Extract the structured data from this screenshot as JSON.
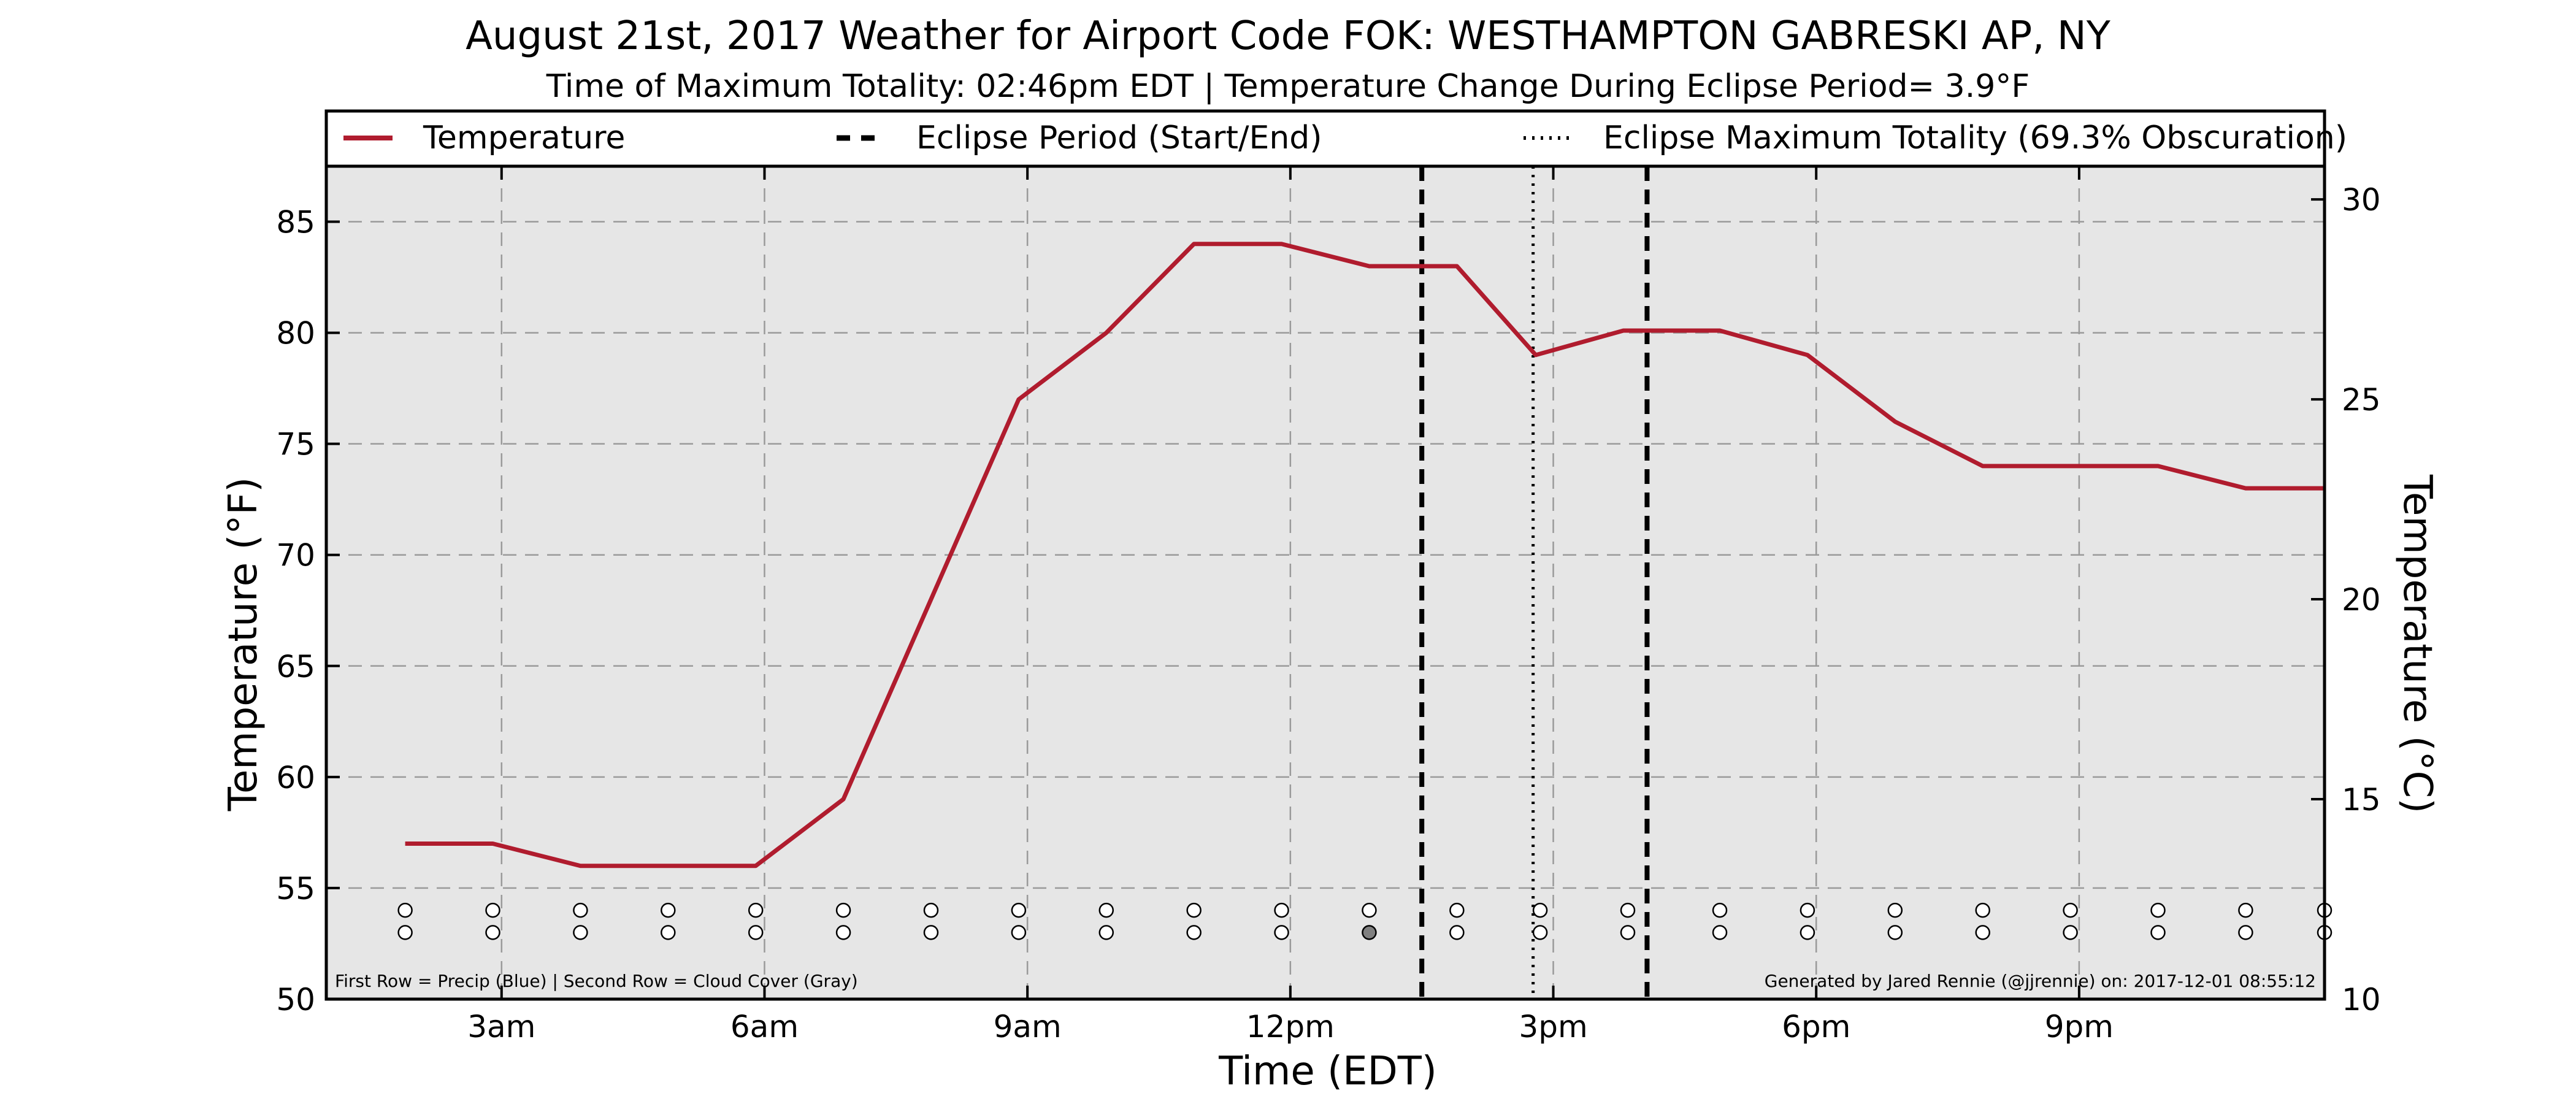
{
  "colors": {
    "temperature_line": "#b01c2e",
    "plot_background": "#e6e6e6",
    "cloud_filled": "#808080",
    "marker_empty": "#ffffff"
  },
  "chart_data": {
    "type": "line",
    "title": "August 21st, 2017 Weather for Airport Code FOK: WESTHAMPTON GABRESKI AP, NY",
    "subtitle": "Time of Maximum Totality: 02:46pm EDT | Temperature Change During Eclipse Period= 3.9°F",
    "xlabel": "Time (EDT)",
    "ylabel": "Temperature (°F)",
    "ylabel_right": "Temperature (°C)",
    "xlim": [
      1.0,
      23.8
    ],
    "ylim": [
      50,
      87.5
    ],
    "ylim_right": [
      10,
      30.83
    ],
    "grid": true,
    "legend_placement": "top",
    "x_ticks": [
      {
        "x": 3,
        "label": "3am"
      },
      {
        "x": 6,
        "label": "6am"
      },
      {
        "x": 9,
        "label": "9am"
      },
      {
        "x": 12,
        "label": "12pm"
      },
      {
        "x": 15,
        "label": "3pm"
      },
      {
        "x": 18,
        "label": "6pm"
      },
      {
        "x": 21,
        "label": "9pm"
      }
    ],
    "y_ticks": [
      50,
      55,
      60,
      65,
      70,
      75,
      80,
      85
    ],
    "y_ticks_right": [
      10,
      15,
      20,
      25,
      30
    ],
    "legend": [
      {
        "label": "Temperature",
        "style": "solid"
      },
      {
        "label": "Eclipse Period (Start/End)",
        "style": "dashed"
      },
      {
        "label": "Eclipse Maximum Totality (69.3% Obscuration)",
        "style": "dotted"
      }
    ],
    "series": [
      {
        "name": "Temperature",
        "x": [
          1.9,
          2.9,
          3.9,
          4.9,
          5.9,
          6.9,
          7.9,
          8.9,
          9.9,
          10.9,
          11.9,
          12.9,
          13.9,
          14.8,
          15.8,
          16.9,
          17.9,
          18.9,
          19.9,
          20.9,
          21.9,
          22.9,
          23.9
        ],
        "y": [
          57,
          57,
          56,
          56,
          56,
          59,
          68,
          77,
          80,
          84,
          84,
          83,
          83,
          79,
          80.1,
          80.1,
          79,
          76,
          74,
          74,
          74,
          73,
          73
        ]
      }
    ],
    "eclipse_start": 13.5,
    "eclipse_max": 14.77,
    "eclipse_end": 16.07,
    "marker_rows": [
      {
        "name": "Precip",
        "y": 54,
        "x": [
          1.9,
          2.9,
          3.9,
          4.9,
          5.9,
          6.9,
          7.9,
          8.9,
          9.9,
          10.9,
          11.9,
          12.9,
          13.9,
          14.85,
          15.85,
          16.9,
          17.9,
          18.9,
          19.9,
          20.9,
          21.9,
          22.9,
          23.8
        ],
        "filled": [
          false,
          false,
          false,
          false,
          false,
          false,
          false,
          false,
          false,
          false,
          false,
          false,
          false,
          false,
          false,
          false,
          false,
          false,
          false,
          false,
          false,
          false,
          false
        ]
      },
      {
        "name": "Cloud Cover",
        "y": 53,
        "x": [
          1.9,
          2.9,
          3.9,
          4.9,
          5.9,
          6.9,
          7.9,
          8.9,
          9.9,
          10.9,
          11.9,
          12.9,
          13.9,
          14.85,
          15.85,
          16.9,
          17.9,
          18.9,
          19.9,
          20.9,
          21.9,
          22.9,
          23.8
        ],
        "filled": [
          false,
          false,
          false,
          false,
          false,
          false,
          false,
          false,
          false,
          false,
          false,
          true,
          false,
          false,
          false,
          false,
          false,
          false,
          false,
          false,
          false,
          false,
          false
        ]
      }
    ],
    "annotations": {
      "left": "First Row = Precip (Blue) | Second Row = Cloud Cover (Gray)",
      "right": "Generated by Jared Rennie (@jjrennie) on: 2017-12-01 08:55:12"
    }
  }
}
